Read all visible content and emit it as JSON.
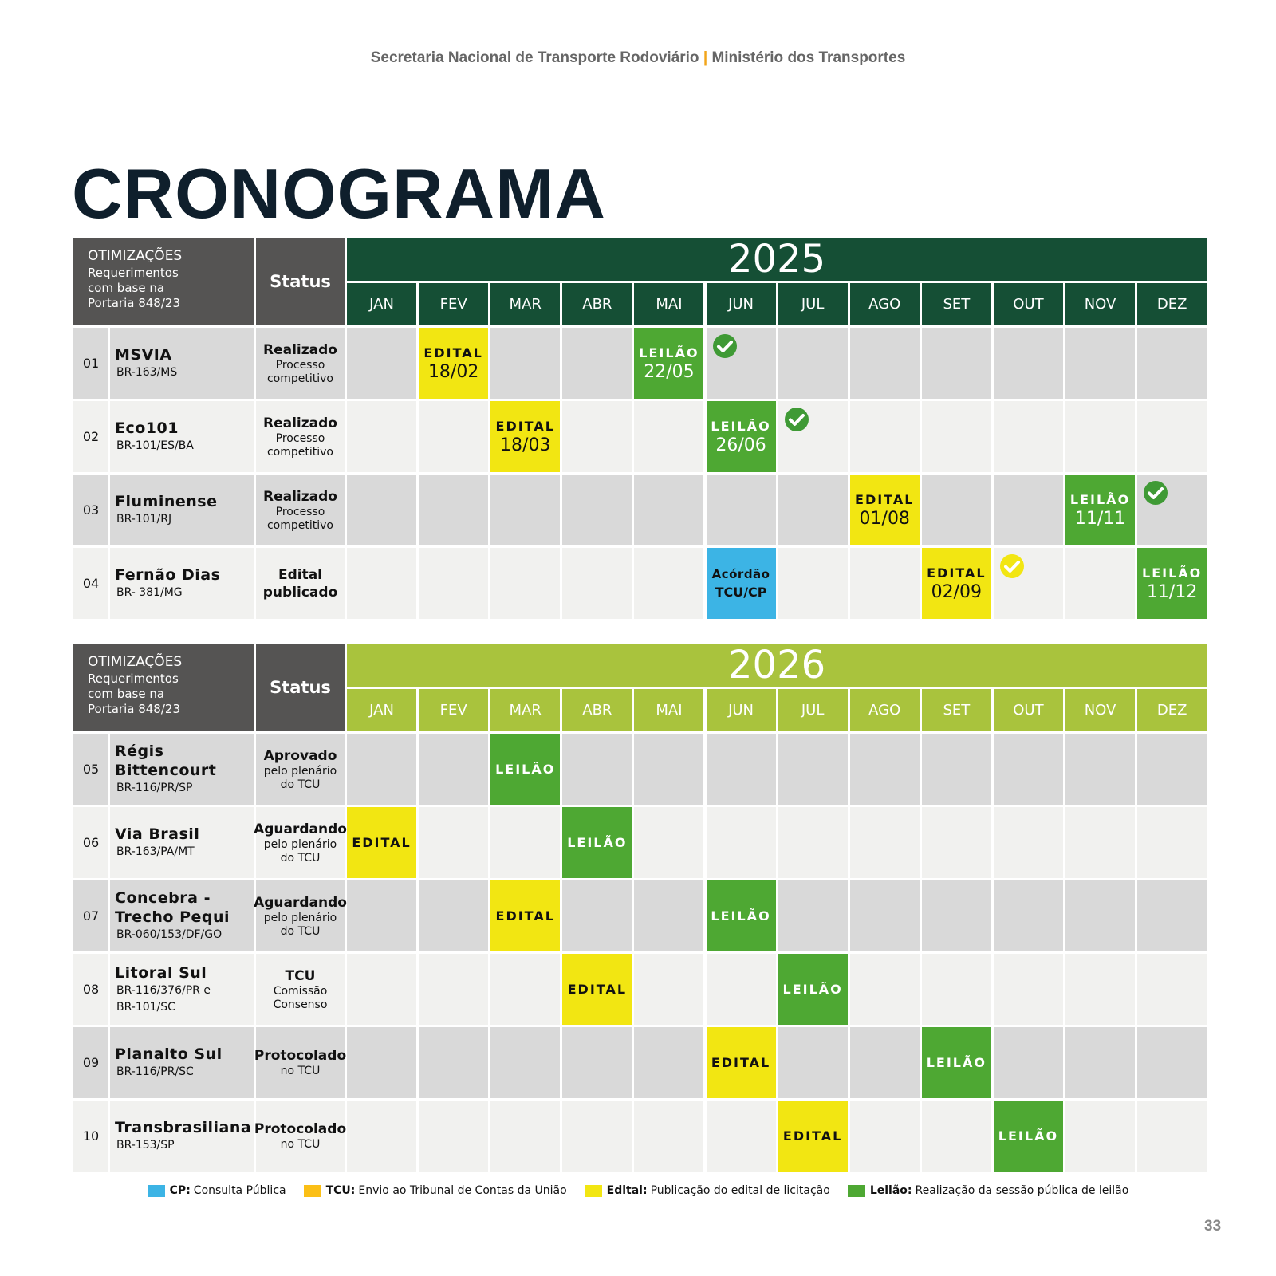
{
  "header": {
    "org": "Secretaria Nacional de Transporte Rodoviário",
    "separator": "|",
    "ministry": "Ministério dos Transportes"
  },
  "title": "CRONOGRAMA",
  "tables": [
    {
      "year": "2025",
      "year_color": "#154f35",
      "head": {
        "label": "OTIMIZAÇÕES",
        "sub": [
          "Requerimentos",
          "com base na",
          "Portaria 848/23"
        ],
        "status": "Status"
      },
      "months": [
        "JAN",
        "FEV",
        "MAR",
        "ABR",
        "MAI",
        "JUN",
        "JUL",
        "AGO",
        "SET",
        "OUT",
        "NOV",
        "DEZ"
      ],
      "rows": [
        {
          "num": "01",
          "name": [
            "MSVIA"
          ],
          "road": [
            "BR-163/MS"
          ],
          "status": {
            "bold": [
              "Realizado"
            ],
            "text": [
              "Processo",
              "competitivo"
            ]
          },
          "cells": [
            null,
            {
              "kind": "edital",
              "label": "EDITAL",
              "date": "18/02"
            },
            null,
            null,
            {
              "kind": "leilao",
              "label": "LEILÃO",
              "date": "22/05"
            },
            {
              "kind": "check"
            },
            null,
            null,
            null,
            null,
            null,
            null
          ]
        },
        {
          "num": "02",
          "name": [
            "Eco101"
          ],
          "road": [
            "BR-101/ES/BA"
          ],
          "status": {
            "bold": [
              "Realizado"
            ],
            "text": [
              "Processo",
              "competitivo"
            ]
          },
          "cells": [
            null,
            null,
            {
              "kind": "edital",
              "label": "EDITAL",
              "date": "18/03"
            },
            null,
            null,
            {
              "kind": "leilao",
              "label": "LEILÃO",
              "date": "26/06"
            },
            {
              "kind": "check"
            },
            null,
            null,
            null,
            null,
            null
          ]
        },
        {
          "num": "03",
          "name": [
            "Fluminense"
          ],
          "road": [
            "BR-101/RJ"
          ],
          "status": {
            "bold": [
              "Realizado"
            ],
            "text": [
              "Processo",
              "competitivo"
            ]
          },
          "cells": [
            null,
            null,
            null,
            null,
            null,
            null,
            null,
            {
              "kind": "edital",
              "label": "EDITAL",
              "date": "01/08"
            },
            null,
            null,
            {
              "kind": "leilao",
              "label": "LEILÃO",
              "date": "11/11"
            },
            {
              "kind": "check"
            }
          ]
        },
        {
          "num": "04",
          "name": [
            "Fernão Dias"
          ],
          "road": [
            "BR- 381/MG"
          ],
          "status": {
            "bold": [
              "Edital",
              "publicado"
            ],
            "text": []
          },
          "cells": [
            null,
            null,
            null,
            null,
            null,
            {
              "kind": "cp",
              "label": "Acórdão",
              "date": "TCU/CP"
            },
            null,
            null,
            {
              "kind": "edital",
              "label": "EDITAL",
              "date": "02/09"
            },
            {
              "kind": "check-yellow"
            },
            null,
            {
              "kind": "leilao",
              "label": "LEILÃO",
              "date": "11/12"
            }
          ]
        }
      ]
    },
    {
      "year": "2026",
      "year_color": "#a9c33d",
      "head": {
        "label": "OTIMIZAÇÕES",
        "sub": [
          "Requerimentos",
          "com base na",
          "Portaria 848/23"
        ],
        "status": "Status"
      },
      "months": [
        "JAN",
        "FEV",
        "MAR",
        "ABR",
        "MAI",
        "JUN",
        "JUL",
        "AGO",
        "SET",
        "OUT",
        "NOV",
        "DEZ"
      ],
      "rows": [
        {
          "num": "05",
          "name": [
            "Régis",
            "Bittencourt"
          ],
          "road": [
            "BR-116/PR/SP"
          ],
          "status": {
            "bold": [
              "Aprovado"
            ],
            "text": [
              "pelo plenário",
              "do TCU"
            ]
          },
          "cells": [
            null,
            null,
            {
              "kind": "leilao",
              "label": "LEILÃO"
            },
            null,
            null,
            null,
            null,
            null,
            null,
            null,
            null,
            null
          ]
        },
        {
          "num": "06",
          "name": [
            "Via Brasil"
          ],
          "road": [
            "BR-163/PA/MT"
          ],
          "status": {
            "bold": [
              "Aguardando"
            ],
            "text": [
              "pelo plenário",
              "do TCU"
            ]
          },
          "cells": [
            {
              "kind": "edital",
              "label": "EDITAL"
            },
            null,
            null,
            {
              "kind": "leilao",
              "label": "LEILÃO"
            },
            null,
            null,
            null,
            null,
            null,
            null,
            null,
            null
          ]
        },
        {
          "num": "07",
          "name": [
            "Concebra -",
            "Trecho Pequi"
          ],
          "road": [
            "BR-060/153/DF/GO"
          ],
          "status": {
            "bold": [
              "Aguardando"
            ],
            "text": [
              "pelo plenário",
              "do TCU"
            ]
          },
          "cells": [
            null,
            null,
            {
              "kind": "edital",
              "label": "EDITAL"
            },
            null,
            null,
            {
              "kind": "leilao",
              "label": "LEILÃO"
            },
            null,
            null,
            null,
            null,
            null,
            null
          ]
        },
        {
          "num": "08",
          "name": [
            "Litoral Sul"
          ],
          "road": [
            "BR-116/376/PR e",
            "BR-101/SC"
          ],
          "status": {
            "bold": [
              "TCU"
            ],
            "text": [
              "Comissão",
              "Consenso"
            ]
          },
          "cells": [
            null,
            null,
            null,
            {
              "kind": "edital",
              "label": "EDITAL"
            },
            null,
            null,
            {
              "kind": "leilao",
              "label": "LEILÃO"
            },
            null,
            null,
            null,
            null,
            null
          ]
        },
        {
          "num": "09",
          "name": [
            "Planalto Sul"
          ],
          "road": [
            "BR-116/PR/SC"
          ],
          "status": {
            "bold": [
              "Protocolado"
            ],
            "text": [
              "no TCU"
            ]
          },
          "cells": [
            null,
            null,
            null,
            null,
            null,
            {
              "kind": "edital",
              "label": "EDITAL"
            },
            null,
            null,
            {
              "kind": "leilao",
              "label": "LEILÃO"
            },
            null,
            null,
            null
          ]
        },
        {
          "num": "10",
          "name": [
            "Transbrasiliana"
          ],
          "road": [
            "BR-153/SP"
          ],
          "status": {
            "bold": [
              "Protocolado"
            ],
            "text": [
              "no TCU"
            ]
          },
          "cells": [
            null,
            null,
            null,
            null,
            null,
            null,
            {
              "kind": "edital",
              "label": "EDITAL"
            },
            null,
            null,
            {
              "kind": "leilao",
              "label": "LEILÃO"
            },
            null,
            null
          ]
        }
      ]
    }
  ],
  "legend": [
    {
      "key": "CP:",
      "text": "Consulta Pública",
      "color": "#3cb4e5"
    },
    {
      "key": "TCU:",
      "text": "Envio ao Tribunal de Contas da União",
      "color": "#fbbf16"
    },
    {
      "key": "Edital:",
      "text": "Publicação do edital de licitação",
      "color": "#f2e612"
    },
    {
      "key": "Leilão:",
      "text": "Realização da sessão pública de leilão",
      "color": "#4ea833"
    }
  ],
  "page_number": "33"
}
